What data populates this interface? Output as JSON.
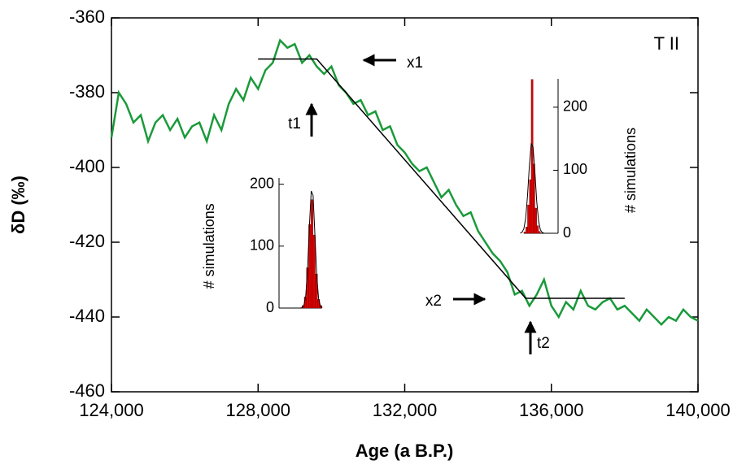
{
  "chart_data": [
    {
      "type": "line",
      "x_label": "Age (a B.P.)",
      "y_label": "δD (‰)",
      "xlim": [
        124000,
        140000
      ],
      "ylim": [
        -460,
        -360
      ],
      "xticks": [
        {
          "value": 124000,
          "label": "124,000"
        },
        {
          "value": 128000,
          "label": "128,000"
        },
        {
          "value": 132000,
          "label": "132,000"
        },
        {
          "value": 136000,
          "label": "136,000"
        },
        {
          "value": 140000,
          "label": "140,000"
        }
      ],
      "yticks": [
        -360,
        -380,
        -400,
        -420,
        -440,
        -460
      ],
      "grid": false,
      "annotations": [
        "T II",
        "x1",
        "x2",
        "t1",
        "t2"
      ],
      "series": [
        {
          "color": "#1a9a3a",
          "x": [
            124000,
            124200,
            124400,
            124600,
            124800,
            125000,
            125200,
            125400,
            125600,
            125800,
            126000,
            126200,
            126400,
            126600,
            126800,
            127000,
            127200,
            127400,
            127600,
            127800,
            128000,
            128200,
            128400,
            128600,
            128800,
            129000,
            129200,
            129400,
            129600,
            129800,
            130000,
            130200,
            130400,
            130600,
            130800,
            131000,
            131200,
            131400,
            131600,
            131800,
            132000,
            132200,
            132400,
            132600,
            132800,
            133000,
            133200,
            133400,
            133600,
            133800,
            134000,
            134200,
            134400,
            134600,
            134800,
            135000,
            135200,
            135400,
            135600,
            135800,
            136000,
            136200,
            136400,
            136600,
            136800,
            137000,
            137200,
            137400,
            137600,
            137800,
            138000,
            138200,
            138400,
            138600,
            138800,
            139000,
            139200,
            139400,
            139600,
            139800,
            140000
          ],
          "values": [
            -392,
            -380,
            -383,
            -388,
            -386,
            -393,
            -388,
            -386,
            -390,
            -387,
            -392,
            -389,
            -388,
            -393,
            -386,
            -390,
            -383,
            -379,
            -382,
            -376,
            -379,
            -374,
            -372,
            -366,
            -368,
            -367,
            -372,
            -370,
            -373,
            -375,
            -373,
            -378,
            -380,
            -383,
            -382,
            -386,
            -385,
            -390,
            -389,
            -394,
            -396,
            -399,
            -401,
            -400,
            -404,
            -408,
            -406,
            -410,
            -413,
            -412,
            -417,
            -420,
            -423,
            -425,
            -428,
            -434,
            -433,
            -437,
            -434,
            -430,
            -437,
            -440,
            -436,
            -438,
            -433,
            -437,
            -438,
            -436,
            -435,
            -438,
            -437,
            -439,
            -441,
            -438,
            -440,
            -442,
            -440,
            -441,
            -438,
            -440,
            -441
          ]
        },
        {
          "color": "#000000",
          "x": [
            128000,
            129600,
            135300,
            138000
          ],
          "values": [
            -371,
            -371,
            -435,
            -435
          ]
        }
      ]
    },
    {
      "type": "histogram",
      "y_label": "# simulations",
      "ylim": [
        0,
        210
      ],
      "yticks": [
        0,
        100,
        200
      ],
      "color": "#e00000",
      "bins": [
        129200,
        129260,
        129320,
        129380,
        129440,
        129500,
        129560,
        129620,
        129680,
        129740
      ],
      "counts": [
        4,
        18,
        65,
        135,
        175,
        118,
        55,
        14,
        4
      ],
      "fit": {
        "color": "#000000",
        "x": [
          129150,
          129200,
          129250,
          129300,
          129350,
          129400,
          129450,
          129500,
          129550,
          129600,
          129650,
          129700,
          129750
        ],
        "values": [
          0,
          0.6,
          4.4,
          20,
          63,
          133,
          189,
          182,
          118,
          52,
          15.5,
          3.1,
          0.4
        ]
      }
    },
    {
      "type": "histogram",
      "y_label": "# simulations",
      "ylim": [
        0,
        245
      ],
      "yticks": [
        0,
        100,
        200
      ],
      "color": "#e00000",
      "bins": [
        135250,
        135300,
        135350,
        135400,
        135450,
        135500,
        135550,
        135600,
        135650,
        135700
      ],
      "counts": [
        2,
        10,
        45,
        85,
        244,
        110,
        40,
        12,
        3
      ],
      "fit": {
        "color": "#000000",
        "x": [
          135150,
          135200,
          135250,
          135300,
          135350,
          135400,
          135450,
          135500,
          135550,
          135600,
          135650,
          135700,
          135750,
          135800
        ],
        "values": [
          0.3,
          1.6,
          7.3,
          24,
          60,
          107,
          142,
          137,
          98,
          51,
          20,
          5.5,
          1.1,
          0.2
        ]
      }
    }
  ]
}
